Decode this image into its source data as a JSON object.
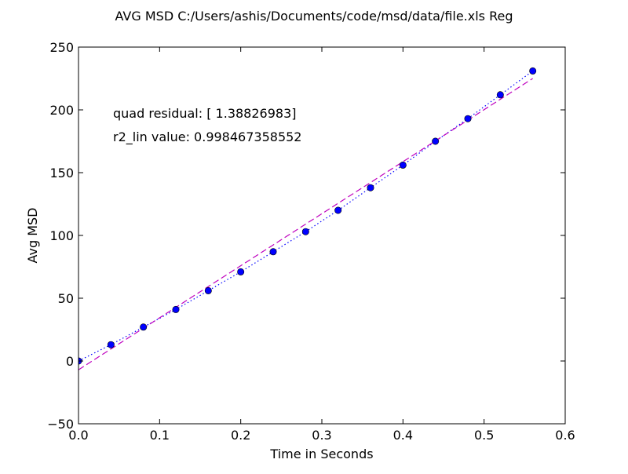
{
  "chart_data": {
    "type": "scatter",
    "title": "AVG MSD C:/Users/ashis/Documents/code/msd/data/file.xls Reg",
    "xlabel": "Time in Seconds",
    "ylabel": "Avg MSD",
    "xlim": [
      0.0,
      0.6
    ],
    "ylim": [
      -50,
      250
    ],
    "x_ticks": [
      0.0,
      0.1,
      0.2,
      0.3,
      0.4,
      0.5,
      0.6
    ],
    "x_tick_labels": [
      "0.0",
      "0.1",
      "0.2",
      "0.3",
      "0.4",
      "0.5",
      "0.6"
    ],
    "y_ticks": [
      -50,
      0,
      50,
      100,
      150,
      200,
      250
    ],
    "y_tick_labels": [
      "−50",
      "0",
      "50",
      "100",
      "150",
      "200",
      "250"
    ],
    "grid": false,
    "annotations": [
      "quad residual: [ 1.38826983]",
      "r2_lin value: 0.998467358552"
    ],
    "series": [
      {
        "style": "markers",
        "color": "#0000ff",
        "x": [
          0.0,
          0.04,
          0.08,
          0.12,
          0.16,
          0.2,
          0.24,
          0.28,
          0.32,
          0.36,
          0.4,
          0.44,
          0.48,
          0.52,
          0.56
        ],
        "y": [
          0,
          13,
          27,
          41,
          56,
          71,
          87,
          103,
          120,
          138,
          156,
          175,
          193,
          212,
          231
        ]
      },
      {
        "style": "dotted",
        "color": "#0000ff",
        "x": [
          0.0,
          0.04,
          0.08,
          0.12,
          0.16,
          0.2,
          0.24,
          0.28,
          0.32,
          0.36,
          0.4,
          0.44,
          0.48,
          0.52,
          0.56
        ],
        "y": [
          0,
          13,
          27,
          41,
          56,
          71,
          87,
          103,
          120,
          138,
          156,
          175,
          193,
          212,
          231
        ]
      },
      {
        "style": "dashed",
        "color": "#bf00bf",
        "x": [
          0.0,
          0.56
        ],
        "y": [
          -7,
          225
        ]
      }
    ]
  }
}
